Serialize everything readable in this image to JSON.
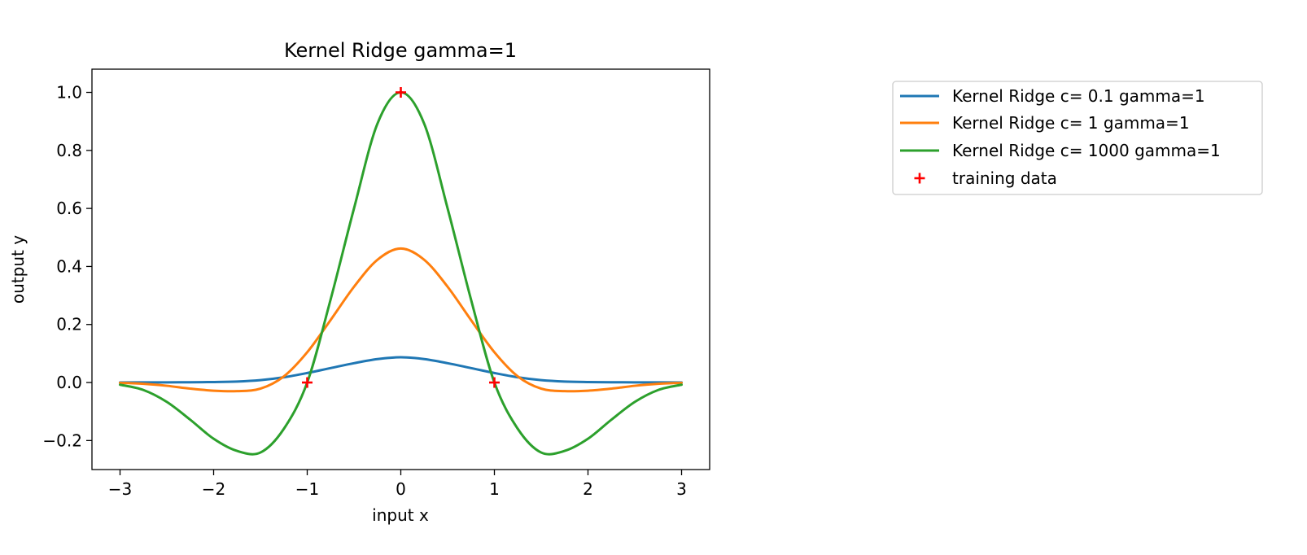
{
  "chart_data": {
    "type": "line",
    "title": "Kernel Ridge gamma=1",
    "xlabel": "input x",
    "ylabel": "output y",
    "xlim": [
      -3.3,
      3.3
    ],
    "ylim": [
      -0.3,
      1.08
    ],
    "xticks": [
      -3,
      -2,
      -1,
      0,
      1,
      2,
      3
    ],
    "xtick_labels": [
      "−3",
      "−2",
      "−1",
      "0",
      "1",
      "2",
      "3"
    ],
    "yticks": [
      -0.2,
      0.0,
      0.2,
      0.4,
      0.6,
      0.8,
      1.0
    ],
    "ytick_labels": [
      "−0.2",
      "0.0",
      "0.2",
      "0.4",
      "0.6",
      "0.8",
      "1.0"
    ],
    "grid": false,
    "legend_position": "outside-right",
    "series": [
      {
        "name": "Kernel Ridge c= 0.1 gamma=1",
        "color": "#1f77b4",
        "x": [
          -3,
          -2.75,
          -2.5,
          -2.25,
          -2,
          -1.75,
          -1.5,
          -1.25,
          -1,
          -0.75,
          -0.5,
          -0.25,
          0,
          0.25,
          0.5,
          0.75,
          1,
          1.25,
          1.5,
          1.75,
          2,
          2.25,
          2.5,
          2.75,
          3
        ],
        "y": [
          0.0003,
          0.0004,
          0.0006,
          0.001,
          0.0017,
          0.0034,
          0.0082,
          0.018,
          0.0328,
          0.0498,
          0.0666,
          0.0807,
          0.0872,
          0.0807,
          0.0666,
          0.0498,
          0.0328,
          0.018,
          0.0082,
          0.0034,
          0.0017,
          0.001,
          0.0006,
          0.0004,
          0.0003
        ]
      },
      {
        "name": "Kernel Ridge c= 1 gamma=1",
        "color": "#ff7f0e",
        "x": [
          -3,
          -2.75,
          -2.5,
          -2.25,
          -2,
          -1.75,
          -1.5,
          -1.25,
          -1,
          -0.75,
          -0.5,
          -0.25,
          0,
          0.25,
          0.5,
          0.75,
          1,
          1.25,
          1.5,
          1.75,
          2,
          2.25,
          2.5,
          2.75,
          3
        ],
        "y": [
          -0.0012,
          -0.0044,
          -0.0113,
          -0.0211,
          -0.0282,
          -0.0297,
          -0.0211,
          0.0211,
          0.1045,
          0.2155,
          0.3301,
          0.4229,
          0.462,
          0.4229,
          0.3301,
          0.2155,
          0.1045,
          0.0211,
          -0.0211,
          -0.0297,
          -0.0282,
          -0.0211,
          -0.0113,
          -0.0044,
          -0.0012
        ]
      },
      {
        "name": "Kernel Ridge c= 1000 gamma=1",
        "color": "#2ca02c",
        "x": [
          -3,
          -2.75,
          -2.5,
          -2.25,
          -2,
          -1.75,
          -1.5,
          -1.25,
          -1,
          -0.75,
          -0.5,
          -0.25,
          0,
          0.25,
          0.5,
          0.75,
          1,
          1.25,
          1.5,
          1.75,
          2,
          2.25,
          2.5,
          2.75,
          3
        ],
        "y": [
          -0.0076,
          -0.0258,
          -0.0669,
          -0.1282,
          -0.1939,
          -0.2358,
          -0.2413,
          -0.1597,
          0.0,
          0.2863,
          0.6002,
          0.8919,
          1.0,
          0.8919,
          0.6002,
          0.2863,
          0.0,
          -0.1597,
          -0.2413,
          -0.2358,
          -0.1939,
          -0.1282,
          -0.0669,
          -0.0258,
          -0.0076
        ]
      }
    ],
    "training_data": {
      "name": "training data",
      "color": "#ff0000",
      "marker": "+",
      "x": [
        -1,
        0,
        1
      ],
      "y": [
        0,
        1,
        0
      ]
    }
  }
}
